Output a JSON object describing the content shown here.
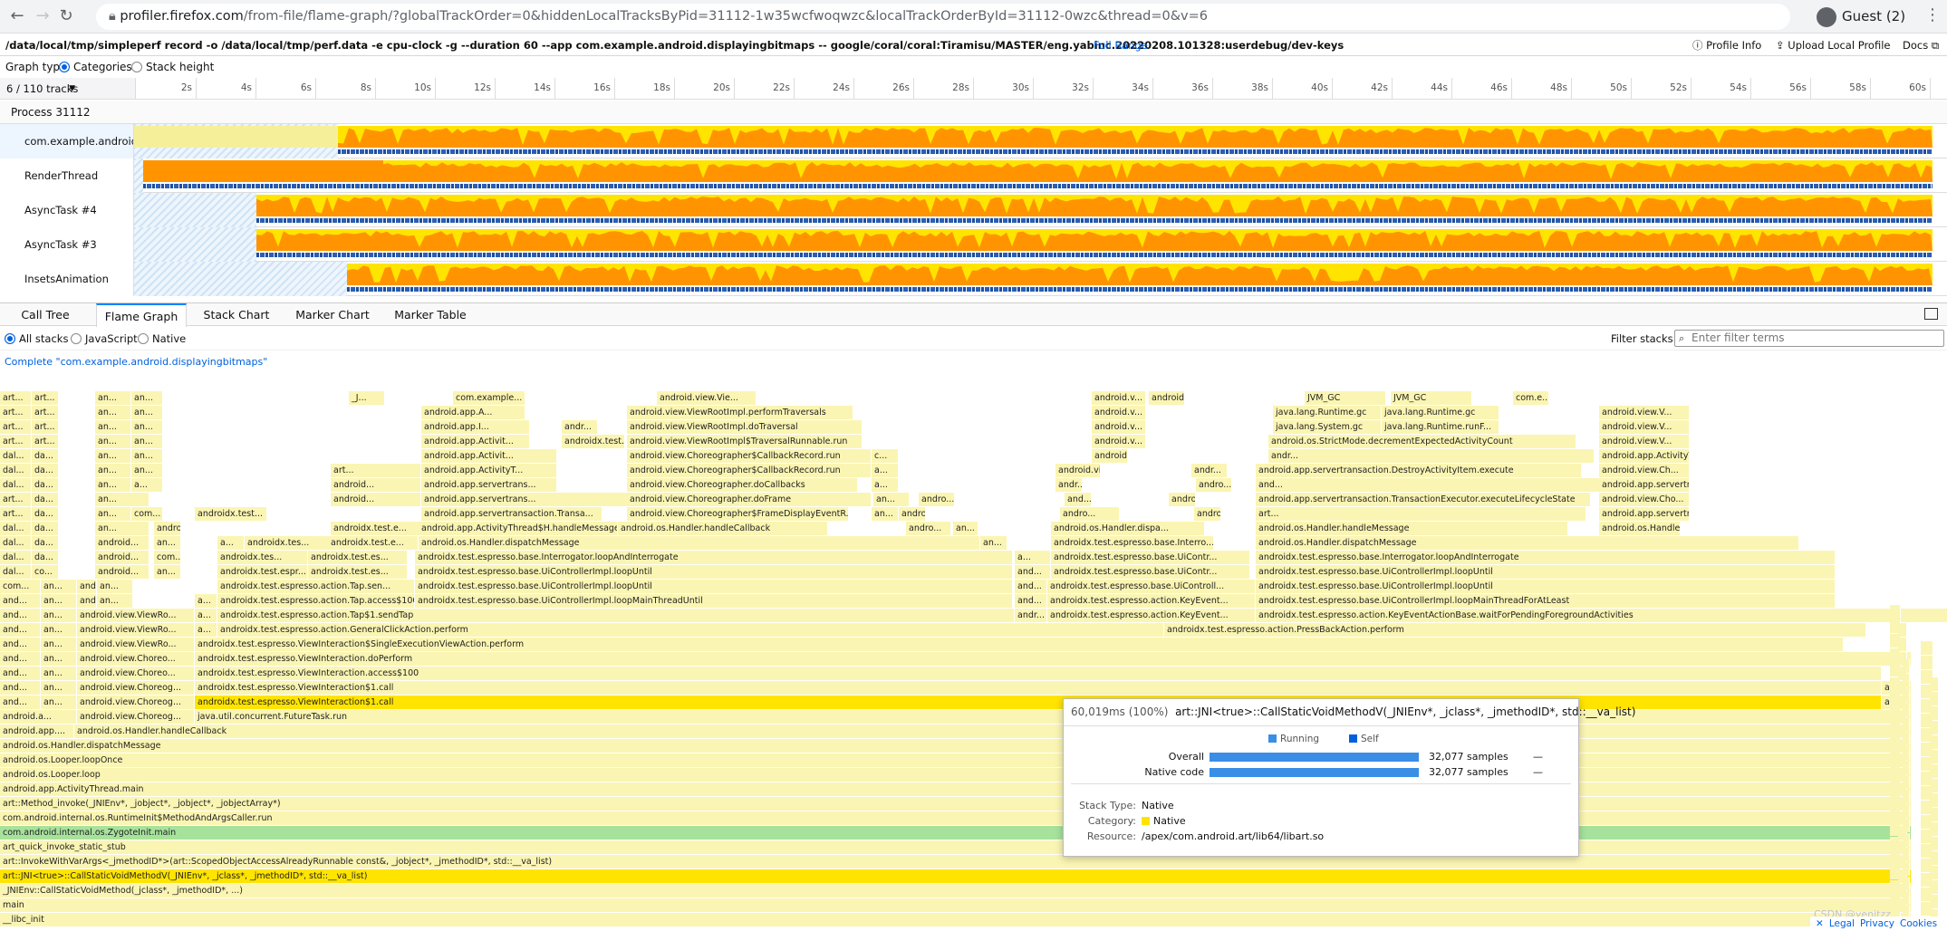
{
  "browser": {
    "url_host": "profiler.firefox.com",
    "url_path": "/from-file/flame-graph/?globalTrackOrder=0&hiddenLocalTracksByPid=31112-1w35wcfwoqwzc&localTrackOrderById=31112-0wzc&thread=0&v=6",
    "profile_label": "Guest (2)"
  },
  "infobar": {
    "command": "/data/local/tmp/simpleperf record -o /data/local/tmp/perf.data -e cpu-clock -g --duration 60 --app com.example.android.displayingbitmaps -- google/coral/coral:Tiramisu/MASTER/eng.yabinc.20220208.101328:userdebug/dev-keys",
    "full_range": "Full Range",
    "profile_info": "Profile Info",
    "upload": "Upload Local Profile",
    "docs": "Docs"
  },
  "graph_type": {
    "label": "Graph type:",
    "categories": "Categories",
    "stack_height": "Stack height",
    "selected": "Categories"
  },
  "timeline": {
    "track_count": "6 / 110 tracks",
    "ticks": [
      "2s",
      "4s",
      "6s",
      "8s",
      "10s",
      "12s",
      "14s",
      "16s",
      "18s",
      "20s",
      "22s",
      "24s",
      "26s",
      "28s",
      "30s",
      "32s",
      "34s",
      "36s",
      "38s",
      "40s",
      "42s",
      "44s",
      "46s",
      "48s",
      "50s",
      "52s",
      "54s",
      "56s",
      "58s",
      "60s"
    ],
    "process": "Process 31112",
    "tracks": [
      {
        "name": "com.example.android.displayingbitmaps",
        "label": "com.example.android...",
        "selected": true
      },
      {
        "name": "RenderThread",
        "label": "RenderThread",
        "selected": false
      },
      {
        "name": "AsyncTask #4",
        "label": "AsyncTask #4",
        "selected": false
      },
      {
        "name": "AsyncTask #3",
        "label": "AsyncTask #3",
        "selected": false
      },
      {
        "name": "InsetsAnimation",
        "label": "InsetsAnimation",
        "selected": false
      }
    ]
  },
  "tabs": [
    "Call Tree",
    "Flame Graph",
    "Stack Chart",
    "Marker Chart",
    "Marker Table"
  ],
  "selected_tab": "Flame Graph",
  "stack_filter": {
    "all": "All stacks",
    "js": "JavaScript",
    "native": "Native",
    "selected": "All stacks",
    "filter_label": "Filter stacks:",
    "filter_placeholder": "Enter filter terms"
  },
  "breadcrumb": "Complete \"com.example.android.displayingbitmaps\"",
  "flame_rows": [
    [
      "__libc_init"
    ],
    [
      "main"
    ],
    [
      "_JNIEnv::CallStaticVoidMethod(_jclass*, _jmethodID*, ...)"
    ],
    [
      "art::JNI<true>::CallStaticVoidMethodV(_JNIEnv*, _jclass*, _jmethodID*, std::__va_list)"
    ],
    [
      "art::InvokeWithVarArgs<_jmethodID*>(art::ScopedObjectAccessAlreadyRunnable const&, _jobject*, _jmethodID*, std::__va_list)"
    ],
    [
      "art_quick_invoke_static_stub"
    ],
    [
      "com.android.internal.os.ZygoteInit.main"
    ],
    [
      "com.android.internal.os.RuntimeInit$MethodAndArgsCaller.run"
    ],
    [
      "art::Method_invoke(_JNIEnv*, _jobject*, _jobject*, _jobjectArray*)"
    ],
    [
      "android.app.ActivityThread.main"
    ],
    [
      "android.os.Looper.loop"
    ],
    [
      "android.os.Looper.loopOnce"
    ],
    [
      "android.os.Handler.dispatchMessage"
    ],
    [
      "android.app....",
      "android.os.Handler.handleCallback"
    ],
    [
      "android.a...",
      "android.view.Choreog...",
      "java.util.concurrent.FutureTask.run"
    ],
    [
      "and...",
      "an...",
      "android.view.Choreog...",
      "androidx.test.espresso.ViewInteraction$1.call",
      "and..."
    ],
    [
      "and...",
      "an...",
      "android.view.Choreog...",
      "androidx.test.espresso.ViewInteraction$1.call",
      "and..."
    ],
    [
      "and...",
      "an...",
      "android.view.Choreo...",
      "androidx.test.espresso.ViewInteraction.access$100"
    ],
    [
      "and...",
      "an...",
      "android.view.Choreo...",
      "androidx.test.espresso.ViewInteraction.doPerform"
    ],
    [
      "and...",
      "an...",
      "android.view.ViewRo...",
      "androidx.test.espresso.ViewInteraction$SingleExecutionViewAction.perform"
    ],
    [
      "and...",
      "an...",
      "android.view.ViewRo...",
      "a...",
      "androidx.test.espresso.action.GeneralClickAction.perform",
      "androidx.test.espresso.action.PressBackAction.perform"
    ],
    [
      "and...",
      "an...",
      "android.view.ViewRo...",
      "a...",
      "androidx.test.espresso.action.Tap$1.sendTap",
      "andr...",
      "androidx.test.espresso.action.KeyEvent...",
      "androidx.test.espresso.action.KeyEventActionBase.waitForPendingForegroundActivities"
    ],
    [
      "and...",
      "an...",
      "android.v...",
      "an...",
      "a...",
      "androidx.test.espresso.action.Tap.access$100",
      "androidx.test.espresso.base.UiControllerImpl.loopMainThreadUntil",
      "and...",
      "androidx.test.espresso.action.KeyEvent...",
      "androidx.test.espresso.base.UiControllerImpl.loopMainThreadForAtLeast"
    ],
    [
      "com...",
      "an...",
      "android.v...",
      "an...",
      "androidx.test.espresso.action.Tap.sen...",
      "androidx.test.espresso.base.UiControllerImpl.loopUntil",
      "and...",
      "androidx.test.espresso.base.UiControll...",
      "androidx.test.espresso.base.UiControllerImpl.loopUntil"
    ],
    [
      "dal...",
      "co...",
      "android...",
      "an...",
      "androidx.test.espr...",
      "androidx.test.es...",
      "androidx.test.espresso.base.UiControllerImpl.loopUntil",
      "and...",
      "androidx.test.espresso.base.UiContr...",
      "androidx.test.espresso.base.UiControllerImpl.loopUntil"
    ],
    [
      "dal...",
      "da...",
      "android...",
      "com...",
      "androidx.tes...",
      "androidx.test.es...",
      "androidx.test.espresso.base.Interrogator.loopAndInterrogate",
      "a...",
      "androidx.test.espresso.base.UiContr...",
      "androidx.test.espresso.base.Interrogator.loopAndInterrogate"
    ],
    [
      "dal...",
      "da...",
      "android...",
      "an...",
      "a...",
      "androidx.tes...",
      "androidx.test.e...",
      "android.os.Handler.dispatchMessage",
      "an...",
      "androidx.test.espresso.base.Interro...",
      "android.os.Handler.dispatchMessage"
    ],
    [
      "dal...",
      "da...",
      "an...",
      "android...",
      "androidx.test.e...",
      "android.app.ActivityThread$H.handleMessage",
      "android.os.Handler.handleCallback",
      "andro...",
      "an...",
      "android.os.Handler.dispa...",
      "android.os.Handler.handleMessage",
      "android.os.Handler..."
    ],
    [
      "art...",
      "da...",
      "an...",
      "com...",
      "androidx.test...",
      "android.app.servertransaction.Transa...",
      "android.view.Choreographer$FrameDisplayEventR...",
      "an...",
      "andro...",
      "andro...",
      "android.os...",
      "art...",
      "android.app.servertransaction.TransactionExecutor.execute",
      "android.view.Cho..."
    ],
    [
      "art...",
      "da...",
      "an...",
      "android...",
      "android.app.servertrans...",
      "android.view.Choreographer.doFrame",
      "an...",
      "andro...",
      "and...",
      "androidx.test...",
      "android.app.servertransaction.TransactionExecutor.executeLifecycleState",
      "android.view.Cho..."
    ],
    [
      "dal...",
      "da...",
      "an...",
      "a...",
      "android...",
      "android.app.servertrans...",
      "android.view.Choreographer.doCallbacks",
      "a...",
      "andr...",
      "andro...",
      "and...",
      "android.app.servertransaction.ActivityTransactionItem.execute",
      "android.view.Cho..."
    ],
    [
      "dal...",
      "da...",
      "an...",
      "an...",
      "art...",
      "android.app.ActivityT...",
      "android.view.Choreographer$CallbackRecord.run",
      "a...",
      "android.vi...",
      "andr...",
      "android.app.servertransaction.DestroyActivityItem.execute",
      "android.view.Ch..."
    ],
    [
      "dal...",
      "da...",
      "an...",
      "an...",
      "android.app.Activit...",
      "android.view.Choreographer$CallbackRecord.run",
      "c...",
      "android.vi...",
      "andr...",
      "android.app.ActivityThread.handleDestroyActivity",
      "android.view.C..."
    ],
    [
      "art...",
      "art...",
      "an...",
      "an...",
      "android.app.Activit...",
      "androidx.test.u...",
      "android.view.ViewRootImpl$TraversalRunnable.run",
      "android.v...",
      "android.os.StrictMode.decrementExpectedActivityCount",
      "android.view.V..."
    ],
    [
      "art...",
      "art...",
      "an...",
      "an...",
      "android.app.I...",
      "andr...",
      "android.view.ViewRootImpl.doTraversal",
      "android.v...",
      "java.lang.System.gc",
      "java.lang.Runtime.runF...",
      "android.view.V..."
    ],
    [
      "art...",
      "art...",
      "an...",
      "an...",
      "android.app.A...",
      "android.view.ViewRootImpl.performTraversals",
      "android.v...",
      "java.lang.Runtime.gc",
      "java.lang.Runtime.gc",
      "android.view.V..."
    ],
    [
      "art...",
      "art...",
      "an...",
      "an...",
      "_J...",
      "com.example...",
      "android.view.Vie...",
      "android.v...",
      "android.v...",
      "JVM_GC",
      "JVM_GC",
      "com.e..."
    ]
  ],
  "tooltip": {
    "duration": "60,019ms (100%)",
    "func": "art::JNI<true>::CallStaticVoidMethodV(_JNIEnv*, _jclass*, _jmethodID*, std::__va_list)",
    "legend_running": "Running",
    "legend_self": "Self",
    "overall_label": "Overall",
    "overall_samples": "32,077 samples",
    "overall_self": "—",
    "native_label": "Native code",
    "native_samples": "32,077 samples",
    "native_self": "—",
    "stack_type_label": "Stack Type:",
    "stack_type": "Native",
    "category_label": "Category:",
    "category": "Native",
    "resource_label": "Resource:",
    "resource": "/apex/com.android.art/lib64/libart.so",
    "running_color": "#3a8ee6",
    "self_color": "#0060df",
    "category_color": "#ffe400"
  },
  "footer": {
    "close": "✕",
    "legal": "Legal",
    "privacy": "Privacy",
    "cookies": "Cookies"
  },
  "watermark": "CSDN @yenitzz",
  "colors": {
    "accent": "#0a84ff",
    "native": "#ffe400",
    "java": "#fbf5b3",
    "cpu": "#ff9400",
    "selected_frame": "#a7e29c"
  }
}
